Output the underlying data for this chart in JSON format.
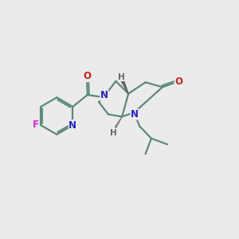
{
  "background_color": "#ebebeb",
  "bond_color": "#5a8a7a",
  "bond_width": 1.6,
  "n_color": "#2222cc",
  "o_color": "#cc2222",
  "f_color": "#dd22dd",
  "h_color": "#666666",
  "figsize": [
    3.0,
    3.0
  ],
  "dpi": 100,
  "xlim": [
    0,
    10
  ],
  "ylim": [
    0,
    10
  ]
}
